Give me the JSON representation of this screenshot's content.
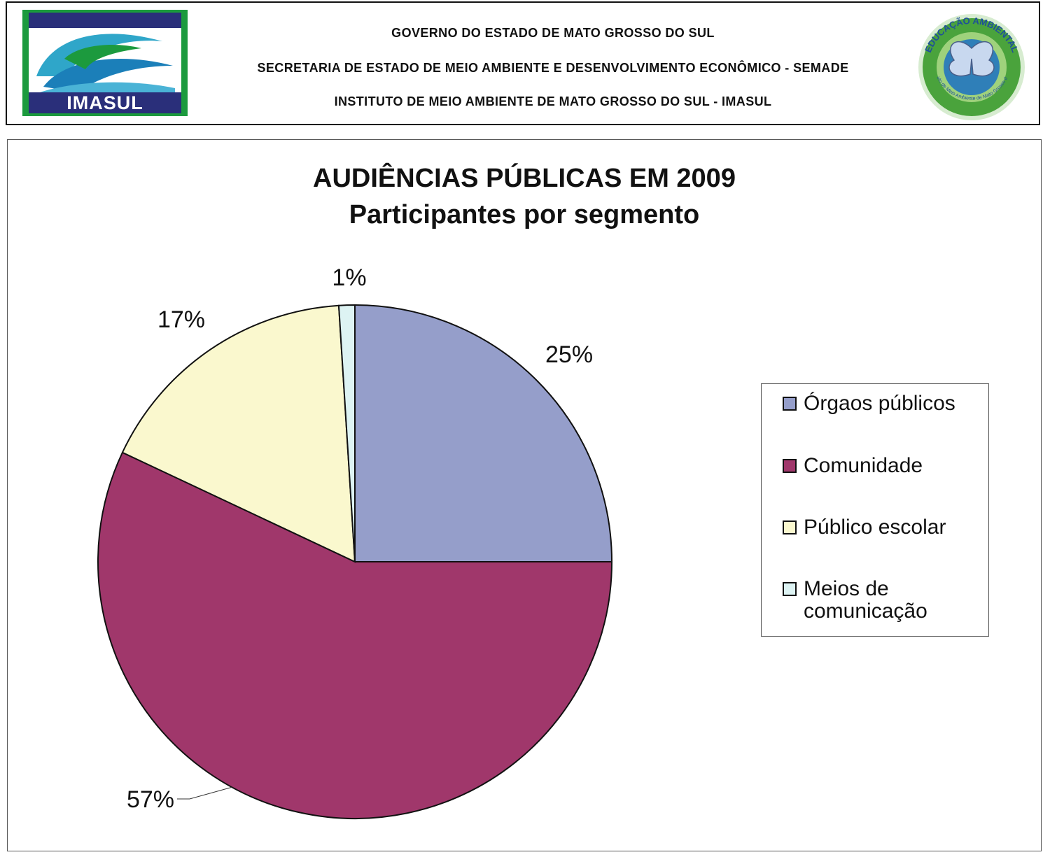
{
  "header": {
    "line1": "GOVERNO DO ESTADO DE MATO GROSSO DO SUL",
    "line2": "SECRETARIA DE ESTADO DE MEIO AMBIENTE E DESENVOLVIMENTO ECONÔMICO - SEMADE",
    "line3": "INSTITUTO DE MEIO AMBIENTE DE MATO GROSSO DO SUL - IMASUL",
    "logo_left_text": "IMASUL",
    "logo_right_top_text": "EDUCAÇÃO AMBIENTAL",
    "logo_right_bottom_text": "Instituto de Meio Ambiente de Mato Grosso do Sul"
  },
  "chart_data": {
    "type": "pie",
    "title": "AUDIÊNCIAS PÚBLICAS EM 2009",
    "subtitle": "Participantes por segmento",
    "legend_position": "right",
    "categories": [
      "Órgaos públicos",
      "Comunidade",
      "Público escolar",
      "Meios de comunicação"
    ],
    "values": [
      25,
      57,
      17,
      1
    ],
    "labels": [
      "25%",
      "57%",
      "17%",
      "1%"
    ],
    "colors": [
      "#959ECA",
      "#A0376B",
      "#FAF8CE",
      "#DDF3F3"
    ]
  }
}
